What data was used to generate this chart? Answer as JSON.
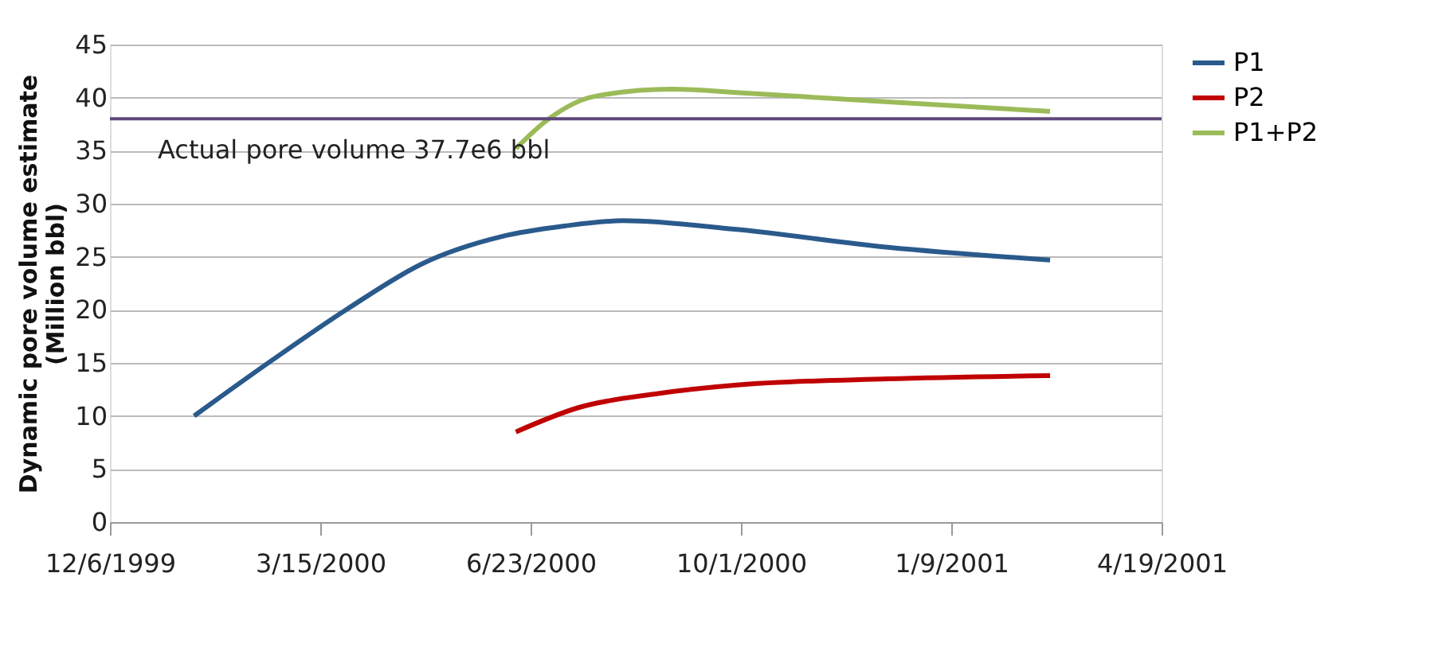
{
  "chart_data": {
    "type": "line",
    "ylabel": "Dynamic pore volume estimate\n(Million bbl)",
    "xlim": [
      "1999-12-06",
      "2001-04-19"
    ],
    "xticks": [
      {
        "value": "1999-12-06",
        "label": "12/6/1999"
      },
      {
        "value": "2000-03-15",
        "label": "3/15/2000"
      },
      {
        "value": "2000-06-23",
        "label": "6/23/2000"
      },
      {
        "value": "2000-10-01",
        "label": "10/1/2000"
      },
      {
        "value": "2001-01-09",
        "label": "1/9/2001"
      },
      {
        "value": "2001-04-19",
        "label": "4/19/2001"
      }
    ],
    "ylim": [
      0,
      45
    ],
    "yticks": [
      0,
      5,
      10,
      15,
      20,
      25,
      30,
      35,
      40,
      45
    ],
    "grid": "y",
    "legend": "right",
    "line_style": "solid",
    "marker": "none",
    "series": [
      {
        "name": "P1",
        "color": "#2a5a8c",
        "x": [
          "2000-01-15",
          "2000-02-20",
          "2000-03-28",
          "2000-05-03",
          "2000-06-09",
          "2000-07-09",
          "2000-08-06",
          "2000-09-28",
          "2000-12-10",
          "2001-02-25"
        ],
        "values": [
          10,
          15.1,
          20.1,
          24.4,
          26.9,
          27.9,
          28.4,
          27.6,
          25.9,
          24.7
        ]
      },
      {
        "name": "P2",
        "color": "#c00000",
        "x": [
          "2000-06-16",
          "2000-07-16",
          "2000-08-22",
          "2000-09-28",
          "2000-12-10",
          "2001-02-25"
        ],
        "values": [
          8.5,
          10.8,
          12.1,
          12.9,
          13.5,
          13.8
        ]
      },
      {
        "name": "P1+P2",
        "color": "#9bbb59",
        "x": [
          "2000-06-16",
          "2000-07-01",
          "2000-07-23",
          "2000-08-29",
          "2000-10-05",
          "2000-12-10",
          "2001-02-25"
        ],
        "values": [
          35.2,
          37.9,
          40.1,
          40.8,
          40.4,
          39.6,
          38.7
        ]
      }
    ],
    "ref_lines": [
      {
        "axis": "y",
        "value": 38,
        "label": "Actual pore volume 37.7e6 bbl",
        "color": "#5f497a",
        "line_style": "solid"
      }
    ]
  }
}
